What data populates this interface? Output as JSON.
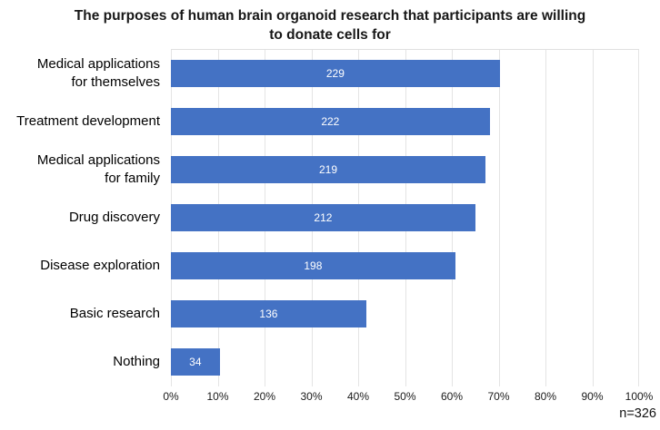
{
  "title": "The purposes of human brain organoid research that participants are willing to donate cells for",
  "footnote": "n=326",
  "colors": {
    "bar": "#4472C4",
    "gridline": "#E4E4E4",
    "value_label": "#FFFFFF",
    "text": "#171717",
    "background": "#FFFFFF"
  },
  "chart_data": {
    "type": "bar",
    "orientation": "horizontal",
    "title": "The purposes of human brain organoid research that participants are willing to donate cells for",
    "categories": [
      "Medical applications for themselves",
      "Treatment development",
      "Medical applications for family",
      "Drug discovery",
      "Disease exploration",
      "Basic research",
      "Nothing"
    ],
    "category_display_lines": [
      "Medical applications\nfor themselves",
      "Treatment development",
      "Medical applications\nfor family",
      "Drug discovery",
      "Disease exploration",
      "Basic research",
      "Nothing"
    ],
    "values": [
      229,
      222,
      219,
      212,
      198,
      136,
      34
    ],
    "total_n": 326,
    "percent_of_total": [
      70.2,
      68.1,
      67.2,
      65.0,
      60.7,
      41.7,
      10.4
    ],
    "data_labels": "inside-center",
    "legend": "none",
    "grid": true,
    "xlabel": "",
    "ylabel": "",
    "x_axis": {
      "unit": "percent",
      "min": 0,
      "max": 100,
      "tick_step": 10,
      "ticks": [
        "0%",
        "10%",
        "20%",
        "30%",
        "40%",
        "50%",
        "60%",
        "70%",
        "80%",
        "90%",
        "100%"
      ]
    },
    "annotation": "n=326"
  }
}
